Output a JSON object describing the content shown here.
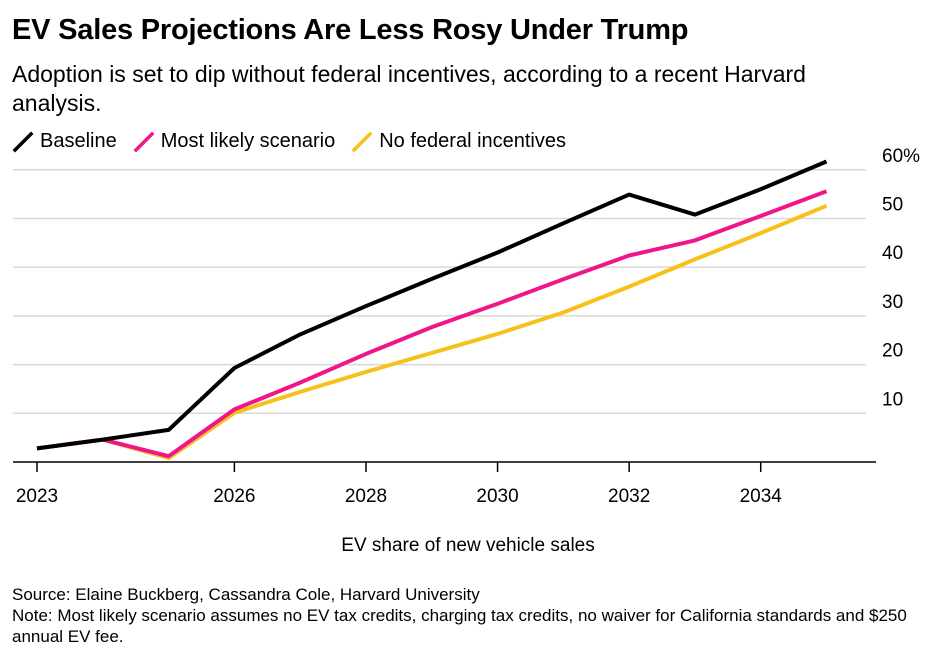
{
  "header": {
    "title": "EV Sales Projections Are Less Rosy Under Trump",
    "subtitle": "Adoption is set to dip without federal incentives, according to a recent Harvard analysis."
  },
  "footer": {
    "source": "Source: Elaine Buckberg, Cassandra Cole, Harvard University",
    "note": "Note: Most likely scenario assumes no EV tax credits, charging tax credits, no waiver for California standards and $250 annual EV fee."
  },
  "chart_data": {
    "type": "line",
    "title": "EV Sales Projections Are Less Rosy Under Trump",
    "subtitle": "Adoption is set to dip without federal incentives, according to a recent Harvard analysis.",
    "xlabel": "EV share of new vehicle sales",
    "ylabel": "",
    "x": [
      2023,
      2024,
      2025,
      2026,
      2027,
      2028,
      2029,
      2030,
      2031,
      2032,
      2033,
      2034,
      2035
    ],
    "x_ticks": [
      2023,
      2026,
      2028,
      2030,
      2032,
      2034
    ],
    "x_tick_labels": [
      "2023",
      "2026",
      "2028",
      "2030",
      "2032",
      "2034"
    ],
    "xlim": [
      2023,
      2035.6
    ],
    "y_ticks": [
      10,
      20,
      30,
      40,
      50,
      60
    ],
    "y_tick_labels": [
      "10",
      "20",
      "30",
      "40",
      "50",
      "60%"
    ],
    "ylim": [
      0,
      62
    ],
    "grid": true,
    "y_axis_position": "right",
    "legend_position": "top-left",
    "series": [
      {
        "name": "Baseline",
        "color": "#000000",
        "values": [
          2.8,
          4.6,
          6.6,
          19.3,
          26.2,
          32.0,
          37.6,
          43.0,
          49.0,
          54.9,
          50.8,
          56.0,
          61.7
        ]
      },
      {
        "name": "Most likely scenario",
        "color": "#f0168a",
        "values": [
          2.8,
          4.6,
          1.2,
          10.8,
          16.3,
          22.2,
          27.7,
          32.5,
          37.5,
          42.4,
          45.5,
          50.5,
          55.6
        ]
      },
      {
        "name": "No federal incentives",
        "color": "#f7c11b",
        "values": [
          2.8,
          4.6,
          0.8,
          10.1,
          14.4,
          18.5,
          22.4,
          26.3,
          30.7,
          36.0,
          41.6,
          47.0,
          52.6
        ]
      }
    ]
  }
}
